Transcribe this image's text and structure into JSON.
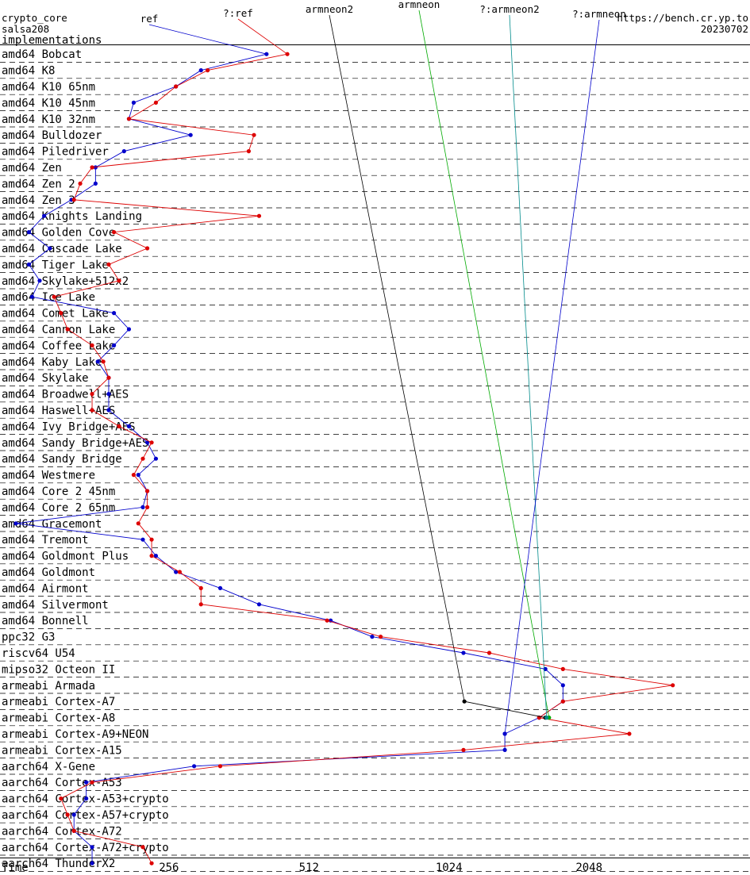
{
  "header": {
    "line1": "crypto_core",
    "line2": "salsa208",
    "line3": "implementations",
    "site": "https://bench.cr.yp.to",
    "date": "20230702"
  },
  "legend": [
    {
      "name": "ref",
      "color": "#0000cc"
    },
    {
      "name": "?:ref",
      "color": "#dd0000"
    },
    {
      "name": "armneon2",
      "color": "#000000"
    },
    {
      "name": "armneon",
      "color": "#00aa00"
    },
    {
      "name": "?:armneon2",
      "color": "#008b8b"
    },
    {
      "name": "?:armneon",
      "color": "#0000cc"
    }
  ],
  "chart_data": {
    "type": "scatter",
    "xlabel": "Time",
    "x_scale": "log2",
    "xlim": [
      120,
      4200
    ],
    "xticks": [
      256,
      512,
      1024,
      2048
    ],
    "categories": [
      "amd64 Bobcat",
      "amd64 K8",
      "amd64 K10 65nm",
      "amd64 K10 45nm",
      "amd64 K10 32nm",
      "amd64 Bulldozer",
      "amd64 Piledriver",
      "amd64 Zen",
      "amd64 Zen 2",
      "amd64 Zen 3",
      "amd64 Knights Landing",
      "amd64 Golden Cove",
      "amd64 Cascade Lake",
      "amd64 Tiger Lake",
      "amd64 Skylake+512x2",
      "amd64 Ice Lake",
      "amd64 Comet Lake",
      "amd64 Cannon Lake",
      "amd64 Coffee Lake",
      "amd64 Kaby Lake",
      "amd64 Skylake",
      "amd64 Broadwell+AES",
      "amd64 Haswell+AES",
      "amd64 Ivy Bridge+AES",
      "amd64 Sandy Bridge+AES",
      "amd64 Sandy Bridge",
      "amd64 Westmere",
      "amd64 Core 2 45nm",
      "amd64 Core 2 65nm",
      "amd64 Gracemont",
      "amd64 Tremont",
      "amd64 Goldmont Plus",
      "amd64 Goldmont",
      "amd64 Airmont",
      "amd64 Silvermont",
      "amd64 Bonnell",
      "ppc32 G3",
      "riscv64 U54",
      "mipso32 Octeon II",
      "armeabi Armada",
      "armeabi Cortex-A7",
      "armeabi Cortex-A8",
      "armeabi Cortex-A9+NEON",
      "armeabi Cortex-A15",
      "aarch64 X-Gene",
      "aarch64 Cortex-A53",
      "aarch64 Cortex-A53+crypto",
      "aarch64 Cortex-A57+crypto",
      "aarch64 Cortex-A72",
      "aarch64 Cortex-A72+crypto",
      "aarch64 ThunderX2"
    ],
    "series": [
      {
        "name": "ref",
        "color": "#0000cc",
        "values": [
          415,
          300,
          265,
          215,
          210,
          285,
          205,
          178,
          178,
          158,
          138,
          128,
          142,
          128,
          135,
          130,
          195,
          210,
          195,
          180,
          190,
          190,
          190,
          210,
          230,
          240,
          220,
          230,
          225,
          120,
          225,
          240,
          265,
          330,
          400,
          570,
          700,
          1100,
          1650,
          1800,
          1800,
          1600,
          1350,
          1350,
          290,
          170,
          170,
          160,
          160,
          175,
          175
        ]
      },
      {
        "name": "?:ref",
        "color": "#dd0000",
        "values": [
          460,
          310,
          265,
          240,
          210,
          390,
          380,
          175,
          165,
          160,
          400,
          195,
          230,
          190,
          200,
          145,
          150,
          155,
          175,
          185,
          190,
          175,
          175,
          200,
          235,
          225,
          215,
          230,
          230,
          220,
          235,
          235,
          270,
          300,
          300,
          560,
          730,
          1250,
          1800,
          3100,
          1800,
          1600,
          2500,
          1100,
          330,
          175,
          150,
          155,
          160,
          225,
          235
        ]
      },
      {
        "name": "armneon2",
        "color": "#000000",
        "values": [
          null,
          null,
          null,
          null,
          null,
          null,
          null,
          null,
          null,
          null,
          null,
          null,
          null,
          null,
          null,
          null,
          null,
          null,
          null,
          null,
          null,
          null,
          null,
          null,
          null,
          null,
          null,
          null,
          null,
          null,
          null,
          null,
          null,
          null,
          null,
          null,
          null,
          null,
          null,
          null,
          1105,
          1650,
          null,
          null,
          null,
          null,
          null,
          null,
          null,
          null,
          null
        ]
      },
      {
        "name": "armneon",
        "color": "#00aa00",
        "values": [
          null,
          null,
          null,
          null,
          null,
          null,
          null,
          null,
          null,
          null,
          null,
          null,
          null,
          null,
          null,
          null,
          null,
          null,
          null,
          null,
          null,
          null,
          null,
          null,
          null,
          null,
          null,
          null,
          null,
          null,
          null,
          null,
          null,
          null,
          null,
          null,
          null,
          null,
          null,
          null,
          null,
          1680,
          null,
          null,
          null,
          null,
          null,
          null,
          null,
          null,
          null
        ]
      },
      {
        "name": "?:armneon2",
        "color": "#008b8b",
        "values": [
          null,
          null,
          null,
          null,
          null,
          null,
          null,
          null,
          null,
          null,
          null,
          null,
          null,
          null,
          null,
          null,
          null,
          null,
          null,
          null,
          null,
          null,
          null,
          null,
          null,
          null,
          null,
          null,
          null,
          null,
          null,
          null,
          null,
          null,
          null,
          null,
          null,
          null,
          null,
          null,
          null,
          1660,
          null,
          null,
          null,
          null,
          null,
          null,
          null,
          null,
          null
        ]
      },
      {
        "name": "?:armneon",
        "color": "#0000cc",
        "values": [
          null,
          null,
          null,
          null,
          null,
          null,
          null,
          null,
          null,
          null,
          null,
          null,
          null,
          null,
          null,
          null,
          null,
          null,
          null,
          null,
          null,
          null,
          null,
          null,
          null,
          null,
          null,
          null,
          null,
          null,
          null,
          null,
          null,
          null,
          null,
          null,
          null,
          null,
          null,
          null,
          null,
          null,
          1350,
          null,
          null,
          null,
          null,
          null,
          null,
          null,
          null
        ]
      }
    ]
  }
}
